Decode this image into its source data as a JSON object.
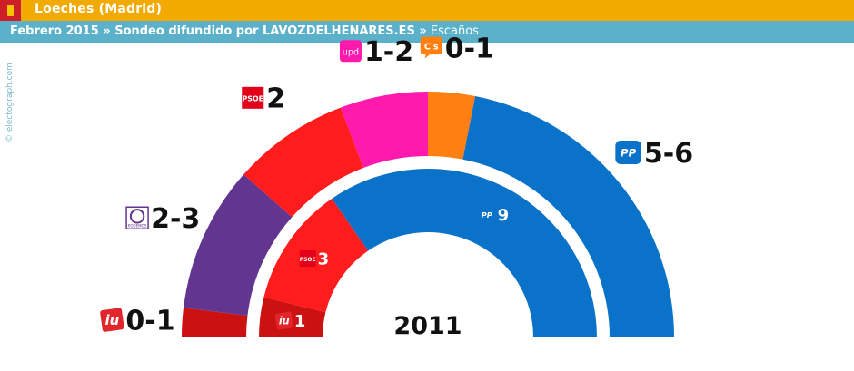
{
  "header": {
    "place": "Loeches (Madrid)",
    "subtitle_bold": "Febrero 2015 » Sondeo difundido por LAVOZDELHENARES.ES »",
    "subtitle_rest": " Escaños",
    "credit": "© electograph.com"
  },
  "chart_data": [
    {
      "type": "semicircle",
      "title": "",
      "series": [
        {
          "party": "IU",
          "logo_text": "iu",
          "label": "0-1",
          "value": 0.5,
          "color": "#cc1111"
        },
        {
          "party": "Podemos",
          "logo_text": "PODEMOS",
          "label": "2-3",
          "value": 2.5,
          "color": "#623590"
        },
        {
          "party": "PSOE",
          "logo_text": "PSOE",
          "label": "2",
          "value": 2,
          "color": "#ff1c1c"
        },
        {
          "party": "UPyD",
          "logo_text": "upd",
          "label": "1-2",
          "value": 1.5,
          "color": "#ff1aad"
        },
        {
          "party": "C's",
          "logo_text": "C's",
          "label": "0-1",
          "value": 0.8,
          "color": "#ff7f11"
        },
        {
          "party": "PP",
          "logo_text": "PP",
          "label": "5-6",
          "value": 5.7,
          "color": "#0a72c9"
        }
      ]
    },
    {
      "type": "semicircle",
      "title": "2011",
      "series": [
        {
          "party": "IU",
          "logo_text": "iu",
          "label": "1",
          "value": 1,
          "color": "#cc1111"
        },
        {
          "party": "PSOE",
          "logo_text": "PSOE",
          "label": "3",
          "value": 3,
          "color": "#ff1c1c"
        },
        {
          "party": "PP",
          "logo_text": "PP",
          "label": "9",
          "value": 9,
          "color": "#0a72c9"
        }
      ]
    }
  ]
}
